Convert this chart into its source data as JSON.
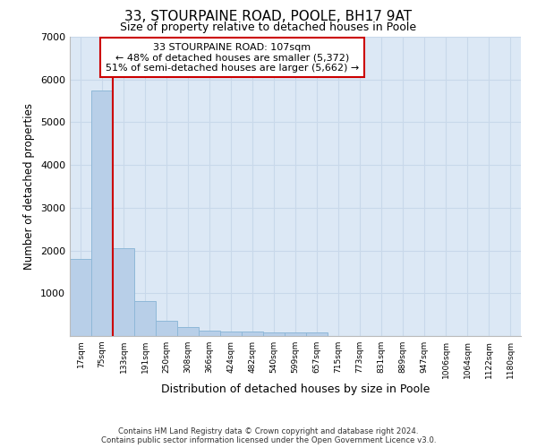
{
  "title1": "33, STOURPAINE ROAD, POOLE, BH17 9AT",
  "title2": "Size of property relative to detached houses in Poole",
  "xlabel": "Distribution of detached houses by size in Poole",
  "ylabel": "Number of detached properties",
  "categories": [
    "17sqm",
    "75sqm",
    "133sqm",
    "191sqm",
    "250sqm",
    "308sqm",
    "366sqm",
    "424sqm",
    "482sqm",
    "540sqm",
    "599sqm",
    "657sqm",
    "715sqm",
    "773sqm",
    "831sqm",
    "889sqm",
    "947sqm",
    "1006sqm",
    "1064sqm",
    "1122sqm",
    "1180sqm"
  ],
  "values": [
    1800,
    5750,
    2050,
    820,
    360,
    220,
    120,
    110,
    100,
    75,
    75,
    75,
    0,
    0,
    0,
    0,
    0,
    0,
    0,
    0,
    0
  ],
  "bar_color": "#b8cfe8",
  "bar_edge_color": "#8fb8d8",
  "grid_color": "#c8d8ea",
  "bg_color": "#dce8f5",
  "vline_color": "#cc0000",
  "annotation_line1": "33 STOURPAINE ROAD: 107sqm",
  "annotation_line2": "← 48% of detached houses are smaller (5,372)",
  "annotation_line3": "51% of semi-detached houses are larger (5,662) →",
  "annotation_box_edge_color": "#cc0000",
  "ylim_max": 7000,
  "yticks": [
    0,
    1000,
    2000,
    3000,
    4000,
    5000,
    6000,
    7000
  ],
  "footnote_line1": "Contains HM Land Registry data © Crown copyright and database right 2024.",
  "footnote_line2": "Contains public sector information licensed under the Open Government Licence v3.0."
}
